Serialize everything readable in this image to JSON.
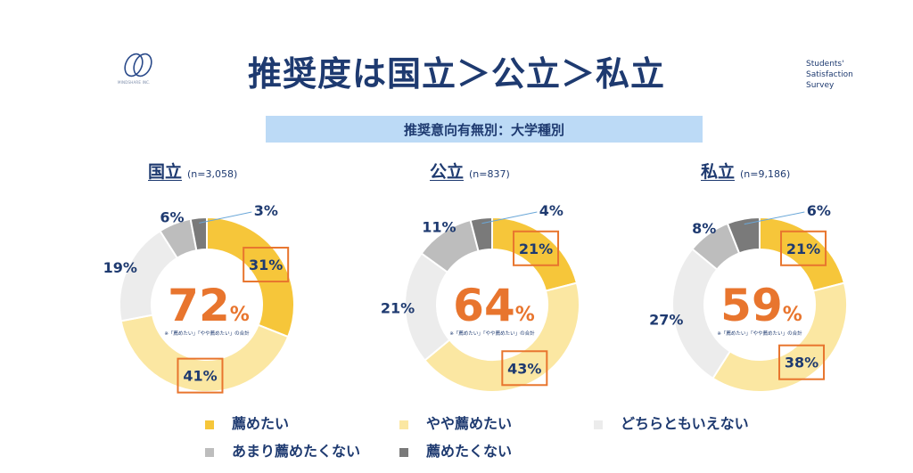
{
  "title": "推奨度は国立＞公立＞私立",
  "logo_text": "MINDSHARE INC.",
  "survey_label": [
    "Students'",
    "Satisfaction",
    "Survey"
  ],
  "subtitle": "推奨意向有無別：大学種別",
  "colors": {
    "recommend": "#f6c63a",
    "somewhat": "#fbe7a2",
    "neutral": "#ececec",
    "not_really": "#bdbdbd",
    "not": "#7a7a7a",
    "highlight_box": "#e8752e",
    "center_number": "#e8752e",
    "title": "#1e3a70"
  },
  "center_note": "※「薦めたい」「やや薦めたい」の合計",
  "legend": {
    "recommend": "薦めたい",
    "somewhat": "やや薦めたい",
    "neutral": "どちらともいえない",
    "not_really": "あまり薦めたくない",
    "not": "薦めたくない"
  },
  "panels": [
    {
      "category": "国立",
      "n": "(n=3,058)"
    },
    {
      "category": "公立",
      "n": "(n=837)"
    },
    {
      "category": "私立",
      "n": "(n=9,186)"
    }
  ],
  "chart_data": [
    {
      "type": "pie",
      "title": "国立",
      "total_label": "72",
      "categories": [
        "薦めたい",
        "やや薦めたい",
        "どちらともいえない",
        "あまり薦めたくない",
        "薦めたくない"
      ],
      "values": [
        31,
        41,
        19,
        6,
        3
      ]
    },
    {
      "type": "pie",
      "title": "公立",
      "total_label": "64",
      "categories": [
        "薦めたい",
        "やや薦めたい",
        "どちらともいえない",
        "あまり薦めたくない",
        "薦めたくない"
      ],
      "values": [
        21,
        43,
        21,
        11,
        4
      ]
    },
    {
      "type": "pie",
      "title": "私立",
      "total_label": "59",
      "categories": [
        "薦めたい",
        "やや薦めたい",
        "どちらともいえない",
        "あまり薦めたくない",
        "薦めたくない"
      ],
      "values": [
        21,
        38,
        27,
        8,
        6
      ]
    }
  ]
}
